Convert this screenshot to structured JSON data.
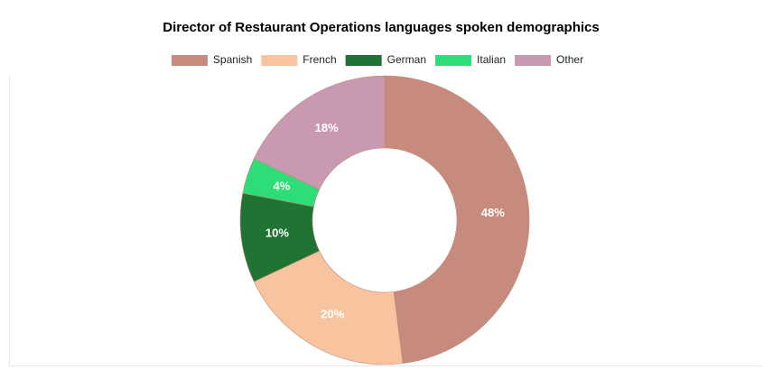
{
  "chart_data": {
    "type": "doughnut",
    "title": "Director of Restaurant Operations languages spoken demographics",
    "categories": [
      "Spanish",
      "French",
      "German",
      "Italian",
      "Other"
    ],
    "values": [
      48,
      20,
      10,
      4,
      18
    ],
    "value_labels": [
      "48%",
      "20%",
      "10%",
      "4%",
      "18%"
    ],
    "colors": [
      "#c78b7e",
      "#f8c49f",
      "#1f7434",
      "#2edc78",
      "#c998b1"
    ],
    "legend": "top"
  }
}
